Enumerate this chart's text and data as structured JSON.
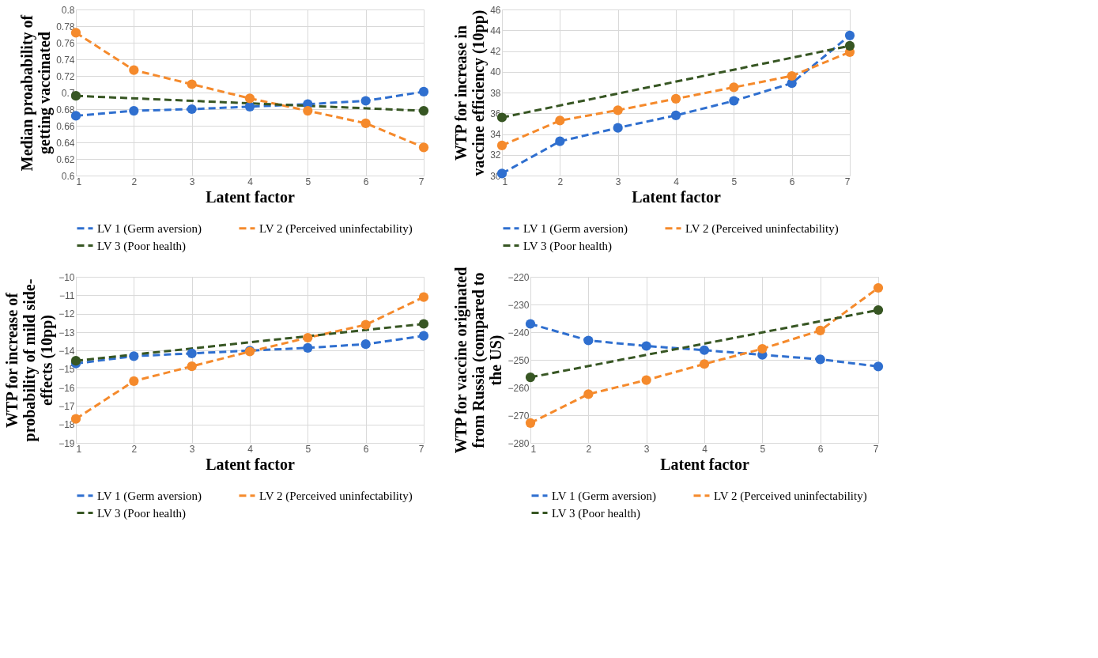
{
  "chart_data": [
    {
      "type": "line",
      "xlabel": "Latent factor",
      "ylabel": "Median proabability of getting vaccinated",
      "xlim": [
        1,
        7
      ],
      "xticks": [
        1,
        2,
        3,
        4,
        5,
        6,
        7
      ],
      "ylim": [
        0.6,
        0.8
      ],
      "yticks": [
        {
          "value": 0.6,
          "label": "0.6"
        },
        0.62,
        0.64,
        0.66,
        0.68,
        {
          "value": 0.7,
          "label": "0.7"
        },
        0.72,
        0.74,
        0.76,
        0.78,
        {
          "value": 0.8,
          "label": "0.8"
        }
      ],
      "grid": true,
      "legend": "bottom",
      "marker": "circle",
      "line_style": "dashed",
      "series": [
        {
          "name": "LV 1 (Germ aversion)",
          "color": "#2f6fcf",
          "x": [
            1,
            2,
            3,
            4,
            5,
            6,
            7
          ],
          "values": [
            0.672,
            0.678,
            0.68,
            0.683,
            0.686,
            0.69,
            0.701
          ]
        },
        {
          "name": "LV 2 (Perceived uninfectability)",
          "color": "#f58a2c",
          "x": [
            1,
            2,
            3,
            4,
            5,
            6,
            7
          ],
          "values": [
            0.772,
            0.727,
            0.71,
            0.693,
            0.678,
            0.663,
            0.634
          ]
        },
        {
          "name": "LV 3 (Poor health)",
          "color": "#375623",
          "x": [
            1,
            7
          ],
          "values": [
            0.696,
            0.678
          ]
        }
      ]
    },
    {
      "type": "line",
      "xlabel": "Latent factor",
      "ylabel": "WTP for increase in vaccine efficiency (10pp)",
      "xlim": [
        1,
        7
      ],
      "xticks": [
        1,
        2,
        3,
        4,
        5,
        6,
        7
      ],
      "ylim": [
        30,
        46
      ],
      "yticks": [
        30,
        32,
        34,
        36,
        38,
        40,
        42,
        44,
        46
      ],
      "grid": true,
      "legend": "bottom",
      "marker": "circle",
      "line_style": "dashed",
      "series": [
        {
          "name": "LV 1 (Germ aversion)",
          "color": "#2f6fcf",
          "x": [
            1,
            2,
            3,
            4,
            5,
            6,
            7
          ],
          "values": [
            30.2,
            33.3,
            34.6,
            35.8,
            37.2,
            38.9,
            43.5
          ]
        },
        {
          "name": "LV 2 (Perceived uninfectability)",
          "color": "#f58a2c",
          "x": [
            1,
            2,
            3,
            4,
            5,
            6,
            7
          ],
          "values": [
            32.9,
            35.3,
            36.3,
            37.4,
            38.5,
            39.6,
            41.9
          ]
        },
        {
          "name": "LV 3 (Poor health)",
          "color": "#375623",
          "x": [
            1,
            7
          ],
          "values": [
            35.6,
            42.5
          ]
        }
      ]
    },
    {
      "type": "line",
      "xlabel": "Latent factor",
      "ylabel": "WTP for increase of probability of mild side-effects (10pp)",
      "xlim": [
        1,
        7
      ],
      "xticks": [
        1,
        2,
        3,
        4,
        5,
        6,
        7
      ],
      "ylim": [
        -19,
        -10
      ],
      "yticks": [
        -19,
        -18,
        -17,
        -16,
        -15,
        -14,
        -13,
        -12,
        -11,
        -10
      ],
      "grid": true,
      "legend": "bottom",
      "marker": "circle",
      "line_style": "dashed",
      "series": [
        {
          "name": "LV 1 (Germ aversion)",
          "color": "#2f6fcf",
          "x": [
            1,
            2,
            3,
            4,
            5,
            6,
            7
          ],
          "values": [
            -14.7,
            -14.3,
            -14.15,
            -14.0,
            -13.85,
            -13.65,
            -13.2
          ]
        },
        {
          "name": "LV 2 (Perceived uninfectability)",
          "color": "#f58a2c",
          "x": [
            1,
            2,
            3,
            4,
            5,
            6,
            7
          ],
          "values": [
            -17.7,
            -15.65,
            -14.85,
            -14.05,
            -13.3,
            -12.6,
            -11.1
          ]
        },
        {
          "name": "LV 3 (Poor health)",
          "color": "#375623",
          "x": [
            1,
            7
          ],
          "values": [
            -14.55,
            -12.55
          ]
        }
      ]
    },
    {
      "type": "line",
      "xlabel": "Latent factor",
      "ylabel": "WTP for vaccine originated from Russia (compared to the US)",
      "xlim": [
        1,
        7
      ],
      "xticks": [
        1,
        2,
        3,
        4,
        5,
        6,
        7
      ],
      "ylim": [
        -280,
        -220
      ],
      "yticks": [
        -280,
        -270,
        -260,
        -250,
        -240,
        -230,
        -220
      ],
      "grid": true,
      "legend": "bottom",
      "marker": "circle",
      "line_style": "dashed",
      "series": [
        {
          "name": "LV 1 (Germ aversion)",
          "color": "#2f6fcf",
          "x": [
            1,
            2,
            3,
            4,
            5,
            6,
            7
          ],
          "values": [
            -237,
            -243,
            -245,
            -246.5,
            -248.2,
            -249.8,
            -252.4
          ]
        },
        {
          "name": "LV 2 (Perceived uninfectability)",
          "color": "#f58a2c",
          "x": [
            1,
            2,
            3,
            4,
            5,
            6,
            7
          ],
          "values": [
            -272.8,
            -262.4,
            -257.3,
            -251.5,
            -246,
            -239.4,
            -224
          ]
        },
        {
          "name": "LV 3 (Poor health)",
          "color": "#375623",
          "x": [
            1,
            7
          ],
          "values": [
            -256.3,
            -232
          ]
        }
      ]
    }
  ]
}
